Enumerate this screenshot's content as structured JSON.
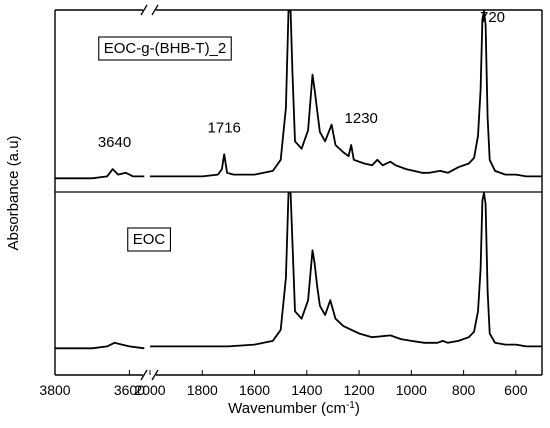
{
  "chart_data": {
    "type": "line",
    "x_axis": {
      "title": "Wavenumber (cm",
      "title_superscript": "-1",
      "title_suffix": ")",
      "direction": "decreasing",
      "break_between": [
        3600,
        2000
      ],
      "segments": [
        {
          "range": [
            3800,
            3550
          ],
          "ticks": [
            3800,
            3600
          ]
        },
        {
          "range": [
            2000,
            500
          ],
          "ticks": [
            2000,
            1800,
            1600,
            1400,
            1200,
            1000,
            800,
            600
          ]
        }
      ],
      "tick_labels": [
        "3800",
        "3600",
        "2000",
        "1800",
        "1600",
        "1400",
        "1200",
        "1000",
        "800",
        "600"
      ]
    },
    "y_axis": {
      "title": "Absorbance (a.u)",
      "ticks": "none"
    },
    "panels": [
      {
        "label": "EOC-g-(BHB-T)_2",
        "annotations": [
          {
            "text": "3640",
            "x": 3640
          },
          {
            "text": "1716",
            "x": 1716
          },
          {
            "text": "1230",
            "x": 1230
          },
          {
            "text": "720",
            "x": 720
          }
        ],
        "points_high_wn": [
          [
            3800,
            0.02
          ],
          [
            3700,
            0.02
          ],
          [
            3660,
            0.03
          ],
          [
            3645,
            0.07
          ],
          [
            3630,
            0.04
          ],
          [
            3610,
            0.05
          ],
          [
            3590,
            0.03
          ],
          [
            3560,
            0.03
          ]
        ],
        "points_low_wn": [
          [
            2000,
            0.03
          ],
          [
            1900,
            0.03
          ],
          [
            1800,
            0.03
          ],
          [
            1740,
            0.04
          ],
          [
            1725,
            0.07
          ],
          [
            1716,
            0.15
          ],
          [
            1705,
            0.05
          ],
          [
            1680,
            0.04
          ],
          [
            1600,
            0.04
          ],
          [
            1530,
            0.06
          ],
          [
            1500,
            0.12
          ],
          [
            1480,
            0.4
          ],
          [
            1470,
            1.2
          ],
          [
            1462,
            1.2
          ],
          [
            1455,
            0.6
          ],
          [
            1445,
            0.22
          ],
          [
            1420,
            0.18
          ],
          [
            1395,
            0.28
          ],
          [
            1378,
            0.58
          ],
          [
            1370,
            0.5
          ],
          [
            1360,
            0.38
          ],
          [
            1350,
            0.27
          ],
          [
            1330,
            0.22
          ],
          [
            1305,
            0.31
          ],
          [
            1290,
            0.2
          ],
          [
            1260,
            0.16
          ],
          [
            1240,
            0.14
          ],
          [
            1230,
            0.2
          ],
          [
            1220,
            0.12
          ],
          [
            1180,
            0.1
          ],
          [
            1150,
            0.09
          ],
          [
            1130,
            0.12
          ],
          [
            1110,
            0.09
          ],
          [
            1080,
            0.11
          ],
          [
            1060,
            0.09
          ],
          [
            1020,
            0.07
          ],
          [
            990,
            0.06
          ],
          [
            960,
            0.05
          ],
          [
            930,
            0.05
          ],
          [
            890,
            0.06
          ],
          [
            860,
            0.05
          ],
          [
            820,
            0.08
          ],
          [
            800,
            0.09
          ],
          [
            780,
            0.1
          ],
          [
            760,
            0.13
          ],
          [
            745,
            0.25
          ],
          [
            735,
            0.5
          ],
          [
            728,
            0.88
          ],
          [
            722,
            1.03
          ],
          [
            716,
            0.85
          ],
          [
            708,
            0.35
          ],
          [
            700,
            0.12
          ],
          [
            680,
            0.06
          ],
          [
            640,
            0.04
          ],
          [
            600,
            0.04
          ],
          [
            560,
            0.03
          ],
          [
            500,
            0.03
          ]
        ]
      },
      {
        "label": "EOC",
        "points_high_wn": [
          [
            3800,
            0.02
          ],
          [
            3700,
            0.02
          ],
          [
            3660,
            0.03
          ],
          [
            3640,
            0.05
          ],
          [
            3620,
            0.04
          ],
          [
            3600,
            0.03
          ],
          [
            3560,
            0.02
          ]
        ],
        "points_low_wn": [
          [
            2000,
            0.03
          ],
          [
            1900,
            0.03
          ],
          [
            1800,
            0.03
          ],
          [
            1700,
            0.03
          ],
          [
            1600,
            0.04
          ],
          [
            1530,
            0.06
          ],
          [
            1500,
            0.12
          ],
          [
            1480,
            0.4
          ],
          [
            1470,
            1.2
          ],
          [
            1462,
            1.2
          ],
          [
            1455,
            0.6
          ],
          [
            1445,
            0.22
          ],
          [
            1420,
            0.18
          ],
          [
            1395,
            0.28
          ],
          [
            1378,
            0.55
          ],
          [
            1370,
            0.48
          ],
          [
            1360,
            0.35
          ],
          [
            1350,
            0.25
          ],
          [
            1330,
            0.2
          ],
          [
            1310,
            0.28
          ],
          [
            1290,
            0.18
          ],
          [
            1260,
            0.14
          ],
          [
            1200,
            0.1
          ],
          [
            1150,
            0.08
          ],
          [
            1080,
            0.09
          ],
          [
            1040,
            0.07
          ],
          [
            1000,
            0.06
          ],
          [
            950,
            0.05
          ],
          [
            900,
            0.05
          ],
          [
            880,
            0.06
          ],
          [
            860,
            0.05
          ],
          [
            820,
            0.06
          ],
          [
            780,
            0.08
          ],
          [
            760,
            0.11
          ],
          [
            745,
            0.22
          ],
          [
            735,
            0.45
          ],
          [
            728,
            0.82
          ],
          [
            722,
            0.95
          ],
          [
            716,
            0.8
          ],
          [
            708,
            0.33
          ],
          [
            700,
            0.1
          ],
          [
            680,
            0.05
          ],
          [
            640,
            0.04
          ],
          [
            600,
            0.04
          ],
          [
            560,
            0.03
          ],
          [
            500,
            0.03
          ]
        ]
      }
    ]
  }
}
